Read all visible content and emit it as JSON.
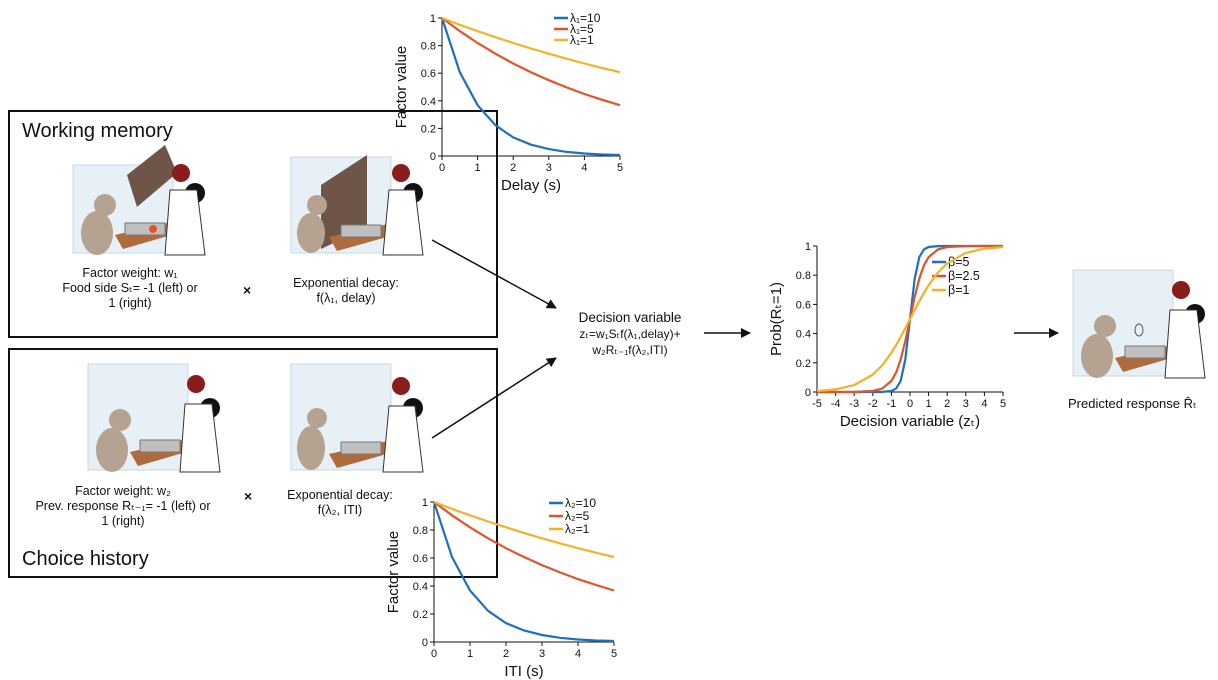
{
  "panels": {
    "working_memory": {
      "title": "Working memory",
      "weight_caption": [
        "Factor weight: w₁",
        "Food side Sₜ= -1 (left) or",
        "1 (right)"
      ],
      "times": "×",
      "decay_caption": [
        "Exponential decay:",
        "f(λ₁, delay)"
      ]
    },
    "choice_history": {
      "title": "Choice history",
      "weight_caption": [
        "Factor weight: w₂",
        "Prev. response Rₜ₋₁= -1 (left) or",
        "1 (right)"
      ],
      "times": "×",
      "decay_caption": [
        "Exponential decay:",
        "f(λ₂, ITI)"
      ]
    }
  },
  "decision_variable": {
    "title": "Decision variable",
    "line1": "zₜ=w₁Sₜf(λ₁,delay)+",
    "line2": "w₂Rₜ₋₁f(λ₂,ITI)"
  },
  "predicted_response": "Predicted response R̂ₜ",
  "colors": {
    "blue": "#1f6fbf",
    "orange": "#e0542a",
    "yellow": "#f0b32a",
    "wall": "#6e5548",
    "table": "#b06b3c",
    "monkey": "#b5a290",
    "hair": "#8a1c1c"
  },
  "chart_data": [
    {
      "type": "line",
      "id": "delay-decay",
      "xlabel": "Delay (s)",
      "ylabel": "Factor value",
      "xlim": [
        0,
        5
      ],
      "ylim": [
        0,
        1
      ],
      "xticks": [
        "0",
        "1",
        "2",
        "3",
        "4",
        "5"
      ],
      "yticks": [
        "0",
        "0.2",
        "0.4",
        "0.6",
        "0.8",
        "1"
      ],
      "legend_position": "top-right",
      "series": [
        {
          "name": "λ₁=10",
          "color": "blue",
          "x": [
            0,
            0.5,
            1,
            1.5,
            2,
            2.5,
            3,
            3.5,
            4,
            4.5,
            5
          ],
          "y": [
            1,
            0.607,
            0.368,
            0.223,
            0.135,
            0.082,
            0.05,
            0.03,
            0.018,
            0.011,
            0.007
          ]
        },
        {
          "name": "λ₁=5",
          "color": "orange",
          "x": [
            0,
            0.5,
            1,
            1.5,
            2,
            2.5,
            3,
            3.5,
            4,
            4.5,
            5
          ],
          "y": [
            1,
            0.905,
            0.819,
            0.741,
            0.67,
            0.607,
            0.549,
            0.497,
            0.449,
            0.407,
            0.368
          ]
        },
        {
          "name": "λ₁=1",
          "color": "yellow",
          "x": [
            0,
            0.5,
            1,
            1.5,
            2,
            2.5,
            3,
            3.5,
            4,
            4.5,
            5
          ],
          "y": [
            1,
            0.951,
            0.905,
            0.861,
            0.819,
            0.779,
            0.741,
            0.705,
            0.67,
            0.638,
            0.607
          ]
        }
      ]
    },
    {
      "type": "line",
      "id": "iti-decay",
      "xlabel": "ITI (s)",
      "ylabel": "Factor value",
      "xlim": [
        0,
        5
      ],
      "ylim": [
        0,
        1
      ],
      "xticks": [
        "0",
        "1",
        "2",
        "3",
        "4",
        "5"
      ],
      "yticks": [
        "0",
        "0.2",
        "0.4",
        "0.6",
        "0.8",
        "1"
      ],
      "legend_position": "top-right",
      "series": [
        {
          "name": "λ₂=10",
          "color": "blue",
          "x": [
            0,
            0.5,
            1,
            1.5,
            2,
            2.5,
            3,
            3.5,
            4,
            4.5,
            5
          ],
          "y": [
            1,
            0.607,
            0.368,
            0.223,
            0.135,
            0.082,
            0.05,
            0.03,
            0.018,
            0.011,
            0.007
          ]
        },
        {
          "name": "λ₂=5",
          "color": "orange",
          "x": [
            0,
            0.5,
            1,
            1.5,
            2,
            2.5,
            3,
            3.5,
            4,
            4.5,
            5
          ],
          "y": [
            1,
            0.905,
            0.819,
            0.741,
            0.67,
            0.607,
            0.549,
            0.497,
            0.449,
            0.407,
            0.368
          ]
        },
        {
          "name": "λ₂=1",
          "color": "yellow",
          "x": [
            0,
            0.5,
            1,
            1.5,
            2,
            2.5,
            3,
            3.5,
            4,
            4.5,
            5
          ],
          "y": [
            1,
            0.951,
            0.905,
            0.861,
            0.819,
            0.779,
            0.741,
            0.705,
            0.67,
            0.638,
            0.607
          ]
        }
      ]
    },
    {
      "type": "line",
      "id": "sigmoid",
      "xlabel": "Decision variable (zₜ)",
      "ylabel": "Prob(Rₜ=1)",
      "xlim": [
        -5,
        5
      ],
      "ylim": [
        0,
        1
      ],
      "xticks": [
        "-5",
        "-4",
        "-3",
        "-2",
        "-1",
        "0",
        "1",
        "2",
        "3",
        "4",
        "5"
      ],
      "yticks": [
        "0",
        "0.2",
        "0.4",
        "0.6",
        "0.8",
        "1"
      ],
      "legend_position": "right",
      "series": [
        {
          "name": "β=5",
          "color": "blue",
          "x": [
            -5,
            -4,
            -3,
            -2,
            -1.5,
            -1,
            -0.75,
            -0.5,
            -0.25,
            0,
            0.25,
            0.5,
            0.75,
            1,
            1.5,
            2,
            3,
            4,
            5
          ],
          "y": [
            0,
            0,
            0,
            0,
            0.001,
            0.007,
            0.023,
            0.076,
            0.223,
            0.5,
            0.777,
            0.924,
            0.977,
            0.993,
            0.999,
            1,
            1,
            1,
            1
          ]
        },
        {
          "name": "β=2.5",
          "color": "orange",
          "x": [
            -5,
            -4,
            -3,
            -2,
            -1.5,
            -1,
            -0.75,
            -0.5,
            -0.25,
            0,
            0.25,
            0.5,
            0.75,
            1,
            1.5,
            2,
            3,
            4,
            5
          ],
          "y": [
            0,
            0,
            0.001,
            0.007,
            0.023,
            0.076,
            0.133,
            0.223,
            0.349,
            0.5,
            0.651,
            0.777,
            0.867,
            0.924,
            0.977,
            0.993,
            0.999,
            1,
            1
          ]
        },
        {
          "name": "β=1",
          "color": "yellow",
          "x": [
            -5,
            -4,
            -3,
            -2,
            -1.5,
            -1,
            -0.75,
            -0.5,
            -0.25,
            0,
            0.25,
            0.5,
            0.75,
            1,
            1.5,
            2,
            3,
            4,
            5
          ],
          "y": [
            0.007,
            0.018,
            0.047,
            0.119,
            0.182,
            0.269,
            0.321,
            0.378,
            0.438,
            0.5,
            0.562,
            0.622,
            0.679,
            0.731,
            0.818,
            0.881,
            0.953,
            0.982,
            0.993
          ]
        }
      ]
    }
  ]
}
